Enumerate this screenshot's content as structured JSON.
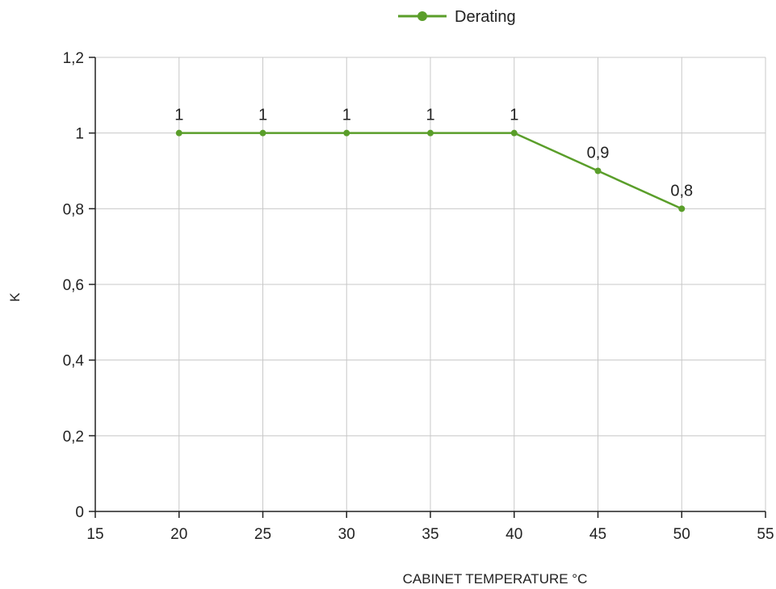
{
  "chart_data": {
    "type": "line",
    "title": "",
    "xlabel": "CABINET TEMPERATURE °C",
    "ylabel": "K",
    "xlim": [
      15,
      55
    ],
    "ylim": [
      0,
      1.2
    ],
    "x_ticks": [
      "15",
      "20",
      "25",
      "30",
      "35",
      "40",
      "45",
      "50",
      "55"
    ],
    "y_ticks": [
      "0",
      "0,2",
      "0,4",
      "0,6",
      "0,8",
      "1",
      "1,2"
    ],
    "grid": true,
    "legend_position": "top",
    "series": [
      {
        "name": "Derating",
        "color": "#5a9e2a",
        "x": [
          20,
          25,
          30,
          35,
          40,
          45,
          50
        ],
        "y": [
          1,
          1,
          1,
          1,
          1,
          0.9,
          0.8
        ],
        "labels": [
          "1",
          "1",
          "1",
          "1",
          "1",
          "0,9",
          "0,8"
        ]
      }
    ]
  }
}
